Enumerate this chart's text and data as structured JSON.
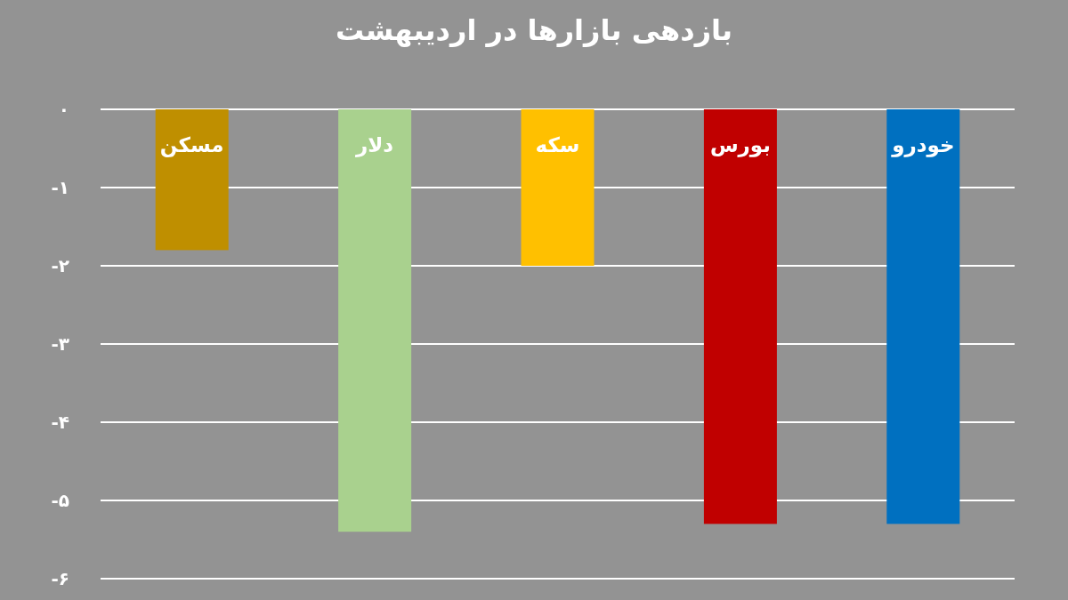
{
  "chart_data": {
    "type": "bar",
    "title": "بازدهی بازارها در اردیبهشت",
    "categories": [
      "مسکن",
      "دلار",
      "سکه",
      "بورس",
      "خودرو"
    ],
    "values": [
      -1.8,
      -5.4,
      -2.0,
      -5.3,
      -5.3
    ],
    "colors": [
      "#bf8f00",
      "#a9d18e",
      "#ffc000",
      "#c00000",
      "#0070c0"
    ],
    "ylim": [
      -6,
      0
    ],
    "yticks": [
      {
        "value": 0,
        "label": "۰"
      },
      {
        "value": -1,
        "label": "-۱"
      },
      {
        "value": -2,
        "label": "-۲"
      },
      {
        "value": -3,
        "label": "-۳"
      },
      {
        "value": -4,
        "label": "-۴"
      },
      {
        "value": -5,
        "label": "-۵"
      },
      {
        "value": -6,
        "label": "-۶"
      }
    ],
    "grid": "y"
  }
}
